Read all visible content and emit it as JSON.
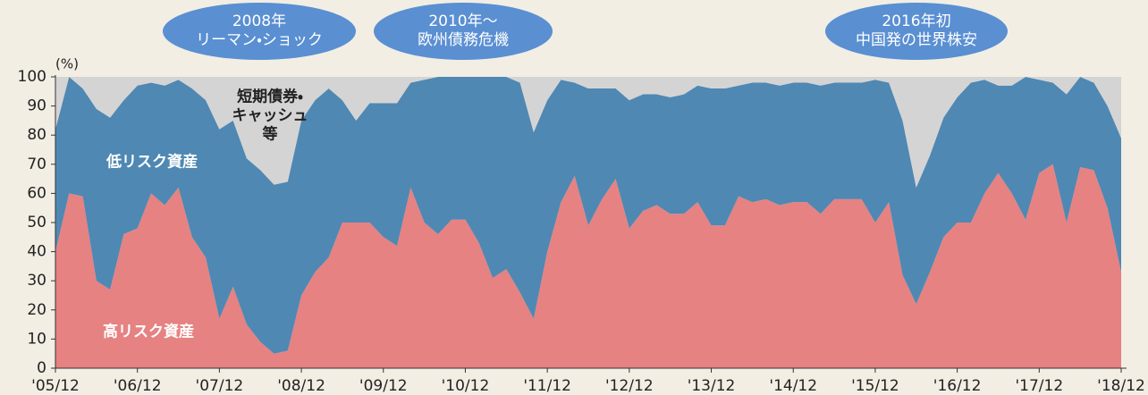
{
  "chart_data": {
    "type": "stacked_area",
    "y_label": "(%)",
    "ylim": [
      0,
      100
    ],
    "yticks": [
      0,
      10,
      20,
      30,
      40,
      50,
      60,
      70,
      80,
      90,
      100
    ],
    "categories": [
      "'05/12",
      null,
      null,
      null,
      null,
      null,
      "'06/12",
      null,
      null,
      null,
      null,
      null,
      "'07/12",
      null,
      null,
      null,
      null,
      null,
      "'08/12",
      null,
      null,
      null,
      null,
      null,
      "'09/12",
      null,
      null,
      null,
      null,
      null,
      "'10/12",
      null,
      null,
      null,
      null,
      null,
      "'11/12",
      null,
      null,
      null,
      null,
      null,
      "'12/12",
      null,
      null,
      null,
      null,
      null,
      "'13/12",
      null,
      null,
      null,
      null,
      null,
      "'14/12",
      null,
      null,
      null,
      null,
      null,
      "'15/12",
      null,
      null,
      null,
      null,
      null,
      "'16/12",
      null,
      null,
      null,
      null,
      null,
      "'17/12",
      null,
      null,
      null,
      null,
      null,
      "'18/12"
    ],
    "series": [
      {
        "name": "高リスク資産",
        "color": "#e68282",
        "label_color": "#ffffff",
        "values": [
          40,
          60,
          59,
          30,
          27,
          46,
          48,
          60,
          56,
          62,
          45,
          38,
          17,
          28,
          15,
          9,
          5,
          6,
          25,
          33,
          38,
          50,
          50,
          50,
          45,
          42,
          62,
          50,
          46,
          51,
          51,
          43,
          31,
          34,
          26,
          17,
          40,
          57,
          66,
          49,
          58,
          65,
          48,
          54,
          56,
          53,
          53,
          57,
          49,
          49,
          59,
          57,
          58,
          56,
          57,
          57,
          53,
          58,
          58,
          58,
          50,
          57,
          32,
          22,
          33,
          45,
          50,
          50,
          60,
          67,
          60,
          51,
          67,
          70,
          50,
          69,
          68,
          55,
          33
        ]
      },
      {
        "name": "低リスク資産",
        "color": "#4f88b3",
        "label_color": "#ffffff",
        "values": [
          42,
          40,
          37,
          59,
          59,
          46,
          49,
          38,
          41,
          37,
          51,
          54,
          65,
          57,
          57,
          59,
          58,
          58,
          60,
          59,
          58,
          42,
          35,
          41,
          46,
          49,
          36,
          49,
          54,
          49,
          49,
          57,
          69,
          66,
          72,
          64,
          52,
          42,
          32,
          47,
          38,
          31,
          44,
          40,
          38,
          40,
          41,
          40,
          47,
          47,
          38,
          41,
          40,
          41,
          41,
          41,
          44,
          40,
          40,
          40,
          49,
          41,
          53,
          40,
          40,
          41,
          43,
          48,
          39,
          30,
          37,
          49,
          32,
          28,
          44,
          31,
          30,
          35,
          46
        ]
      },
      {
        "name": "短期債券・\nキャッシュ\n等",
        "color": "#d4d4d4",
        "label_color": "#222222",
        "values": [
          18,
          0,
          4,
          11,
          14,
          8,
          3,
          2,
          3,
          1,
          4,
          8,
          18,
          15,
          28,
          32,
          37,
          36,
          15,
          8,
          4,
          8,
          15,
          9,
          9,
          9,
          2,
          1,
          0,
          0,
          0,
          0,
          0,
          0,
          2,
          19,
          8,
          1,
          2,
          4,
          4,
          4,
          8,
          6,
          6,
          7,
          6,
          3,
          4,
          4,
          3,
          2,
          2,
          3,
          2,
          2,
          3,
          2,
          2,
          2,
          1,
          2,
          15,
          38,
          27,
          14,
          7,
          2,
          1,
          3,
          3,
          0,
          1,
          2,
          6,
          0,
          2,
          10,
          21
        ]
      }
    ],
    "annotations": [
      {
        "text": "2008年\nリーマン・ショック"
      },
      {
        "text": "2010年〜\n欧州債務危機"
      },
      {
        "text": "2016年初\n中国発の世界株安"
      }
    ]
  }
}
